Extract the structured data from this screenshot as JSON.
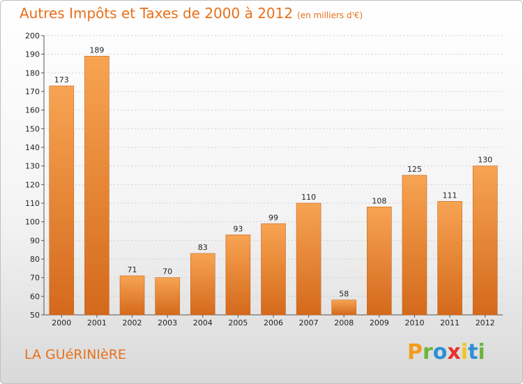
{
  "header": {
    "title": "Autres Impôts et Taxes de 2000 à 2012",
    "unit": "(en milliers d'€)"
  },
  "footer": {
    "commune": "LA GUéRINIèRE",
    "logo_letters": [
      {
        "ch": "P",
        "color": "#f39c1e"
      },
      {
        "ch": "r",
        "color": "#6cb43f"
      },
      {
        "ch": "o",
        "color": "#2e8fd6"
      },
      {
        "ch": "x",
        "color": "#e8312f"
      },
      {
        "ch": "i",
        "color": "#f3c21e"
      },
      {
        "ch": "t",
        "color": "#2e8fd6"
      },
      {
        "ch": "i",
        "color": "#6cb43f"
      }
    ]
  },
  "chart_data": {
    "type": "bar",
    "title": "Autres Impôts et Taxes de 2000 à 2012",
    "subtitle": "(en milliers d'€)",
    "categories": [
      "2000",
      "2001",
      "2002",
      "2003",
      "2004",
      "2005",
      "2006",
      "2007",
      "2008",
      "2009",
      "2010",
      "2011",
      "2012"
    ],
    "values": [
      173,
      189,
      71,
      70,
      83,
      93,
      99,
      110,
      58,
      108,
      125,
      111,
      130
    ],
    "ylim": [
      50,
      200
    ],
    "ytick_step": 10,
    "grid": true,
    "bar_color_top": "#f7a452",
    "bar_color_bottom": "#d4691c"
  }
}
